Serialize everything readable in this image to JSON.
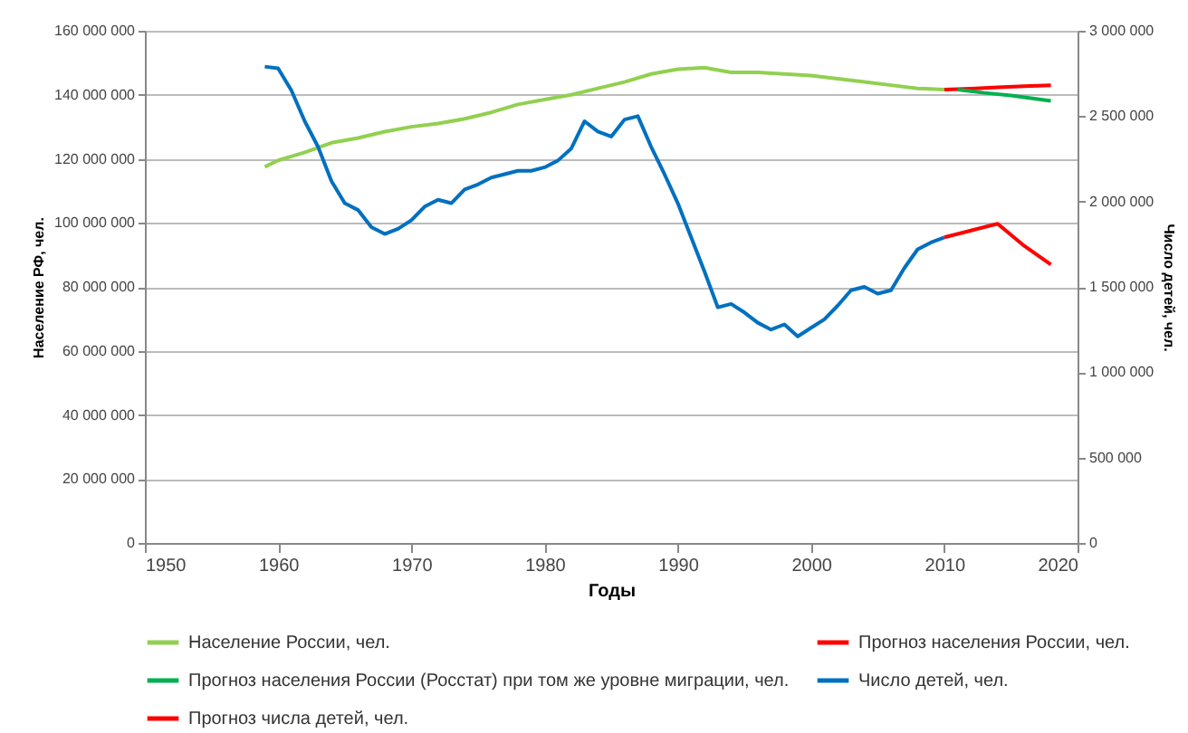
{
  "chart_data": {
    "type": "line",
    "xlabel": "Годы",
    "ylabel": "Население РФ, чел.",
    "y2label": "Число детей, чел.",
    "xlim": [
      1950,
      2020
    ],
    "xticks": [
      1950,
      1960,
      1970,
      1980,
      1990,
      2000,
      2010,
      2020
    ],
    "ylim": [
      0,
      160000000
    ],
    "yticks": [
      {
        "value": 0,
        "label": "0"
      },
      {
        "value": 20000000,
        "label": "20 000 000"
      },
      {
        "value": 40000000,
        "label": "40 000 000"
      },
      {
        "value": 60000000,
        "label": "60 000 000"
      },
      {
        "value": 80000000,
        "label": "80 000 000"
      },
      {
        "value": 100000000,
        "label": "100 000 000"
      },
      {
        "value": 120000000,
        "label": "120 000 000"
      },
      {
        "value": 140000000,
        "label": "140 000 000"
      },
      {
        "value": 160000000,
        "label": "160 000 000"
      }
    ],
    "y2lim": [
      0,
      3000000
    ],
    "y2ticks": [
      {
        "value": 0,
        "label": "0"
      },
      {
        "value": 500000,
        "label": "500 000"
      },
      {
        "value": 1000000,
        "label": "1 000 000"
      },
      {
        "value": 1500000,
        "label": "1 500 000"
      },
      {
        "value": 2000000,
        "label": "2 000 000"
      },
      {
        "value": 2500000,
        "label": "2 500 000"
      },
      {
        "value": 3000000,
        "label": "3 000 000"
      }
    ],
    "grid": "y",
    "legend": "bottom",
    "marker": "none",
    "line_style": "solid",
    "series": [
      {
        "name": "Население России, чел.",
        "color": "#92d050",
        "x": [
          1959,
          1960,
          1962,
          1964,
          1966,
          1968,
          1970,
          1972,
          1974,
          1976,
          1978,
          1980,
          1982,
          1984,
          1986,
          1988,
          1990,
          1992,
          1994,
          1996,
          1998,
          2000,
          2002,
          2004,
          2006,
          2008,
          2010
        ],
        "values": [
          117500000,
          119500000,
          122000000,
          125000000,
          126500000,
          128500000,
          130000000,
          131000000,
          132500000,
          134500000,
          137000000,
          138500000,
          140000000,
          142000000,
          144000000,
          146500000,
          148000000,
          148500000,
          147000000,
          147000000,
          146500000,
          146000000,
          145000000,
          144000000,
          143000000,
          142000000,
          141600000
        ]
      },
      {
        "name": "Прогноз населения России, чел.",
        "color": "#ff0000",
        "x": [
          2010,
          2012,
          2014,
          2016,
          2018
        ],
        "values": [
          141600000,
          141900000,
          142300000,
          142700000,
          143000000
        ]
      },
      {
        "name": "Прогноз населения России (Росстат) при том же уровне миграции, чел.",
        "color": "#00b050",
        "x": [
          2011,
          2013,
          2015,
          2018
        ],
        "values": [
          141600000,
          140600000,
          139800000,
          138100000
        ]
      },
      {
        "name": "Число детей, чел.",
        "color": "#0070c0",
        "axis": "y2",
        "x": [
          1959,
          1960,
          1961,
          1962,
          1963,
          1964,
          1965,
          1966,
          1967,
          1968,
          1969,
          1970,
          1971,
          1972,
          1973,
          1974,
          1975,
          1976,
          1977,
          1978,
          1979,
          1980,
          1981,
          1982,
          1983,
          1984,
          1985,
          1986,
          1987,
          1988,
          1989,
          1990,
          1991,
          1992,
          1993,
          1994,
          1995,
          1996,
          1997,
          1998,
          1999,
          2000,
          2001,
          2002,
          2003,
          2004,
          2005,
          2006,
          2007,
          2008,
          2009,
          2010
        ],
        "values": [
          2790000,
          2780000,
          2650000,
          2470000,
          2320000,
          2120000,
          1990000,
          1950000,
          1850000,
          1810000,
          1840000,
          1890000,
          1970000,
          2010000,
          1990000,
          2070000,
          2100000,
          2140000,
          2160000,
          2180000,
          2180000,
          2200000,
          2240000,
          2310000,
          2470000,
          2410000,
          2380000,
          2480000,
          2500000,
          2320000,
          2160000,
          1990000,
          1790000,
          1590000,
          1380000,
          1400000,
          1350000,
          1290000,
          1250000,
          1280000,
          1210000,
          1260000,
          1310000,
          1390000,
          1480000,
          1500000,
          1460000,
          1480000,
          1610000,
          1720000,
          1760000,
          1790000
        ]
      },
      {
        "name": "Прогноз числа детей, чел.",
        "color": "#ff0000",
        "axis": "y2",
        "x": [
          2010,
          2012,
          2014,
          2016,
          2018
        ],
        "values": [
          1790000,
          1830000,
          1870000,
          1740000,
          1630000
        ]
      }
    ]
  }
}
